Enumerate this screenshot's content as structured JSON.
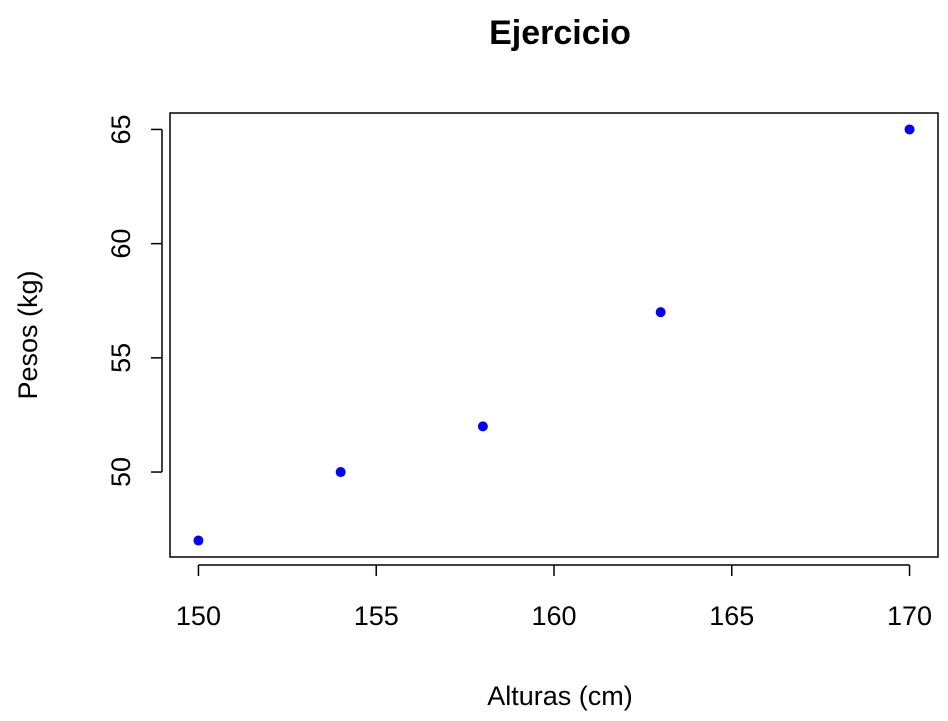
{
  "chart_data": {
    "type": "scatter",
    "title": "Ejercicio",
    "xlabel": "Alturas (cm)",
    "ylabel": "Pesos (kg)",
    "x": [
      150,
      154,
      158,
      163,
      170
    ],
    "y": [
      47,
      50,
      52,
      57,
      65
    ],
    "xlim": [
      149.2,
      170.8
    ],
    "ylim": [
      46.28,
      65.72
    ],
    "xticks": [
      150,
      155,
      160,
      165,
      170
    ],
    "yticks": [
      50,
      55,
      60,
      65
    ],
    "grid": false,
    "point_color": "#0000ff"
  }
}
